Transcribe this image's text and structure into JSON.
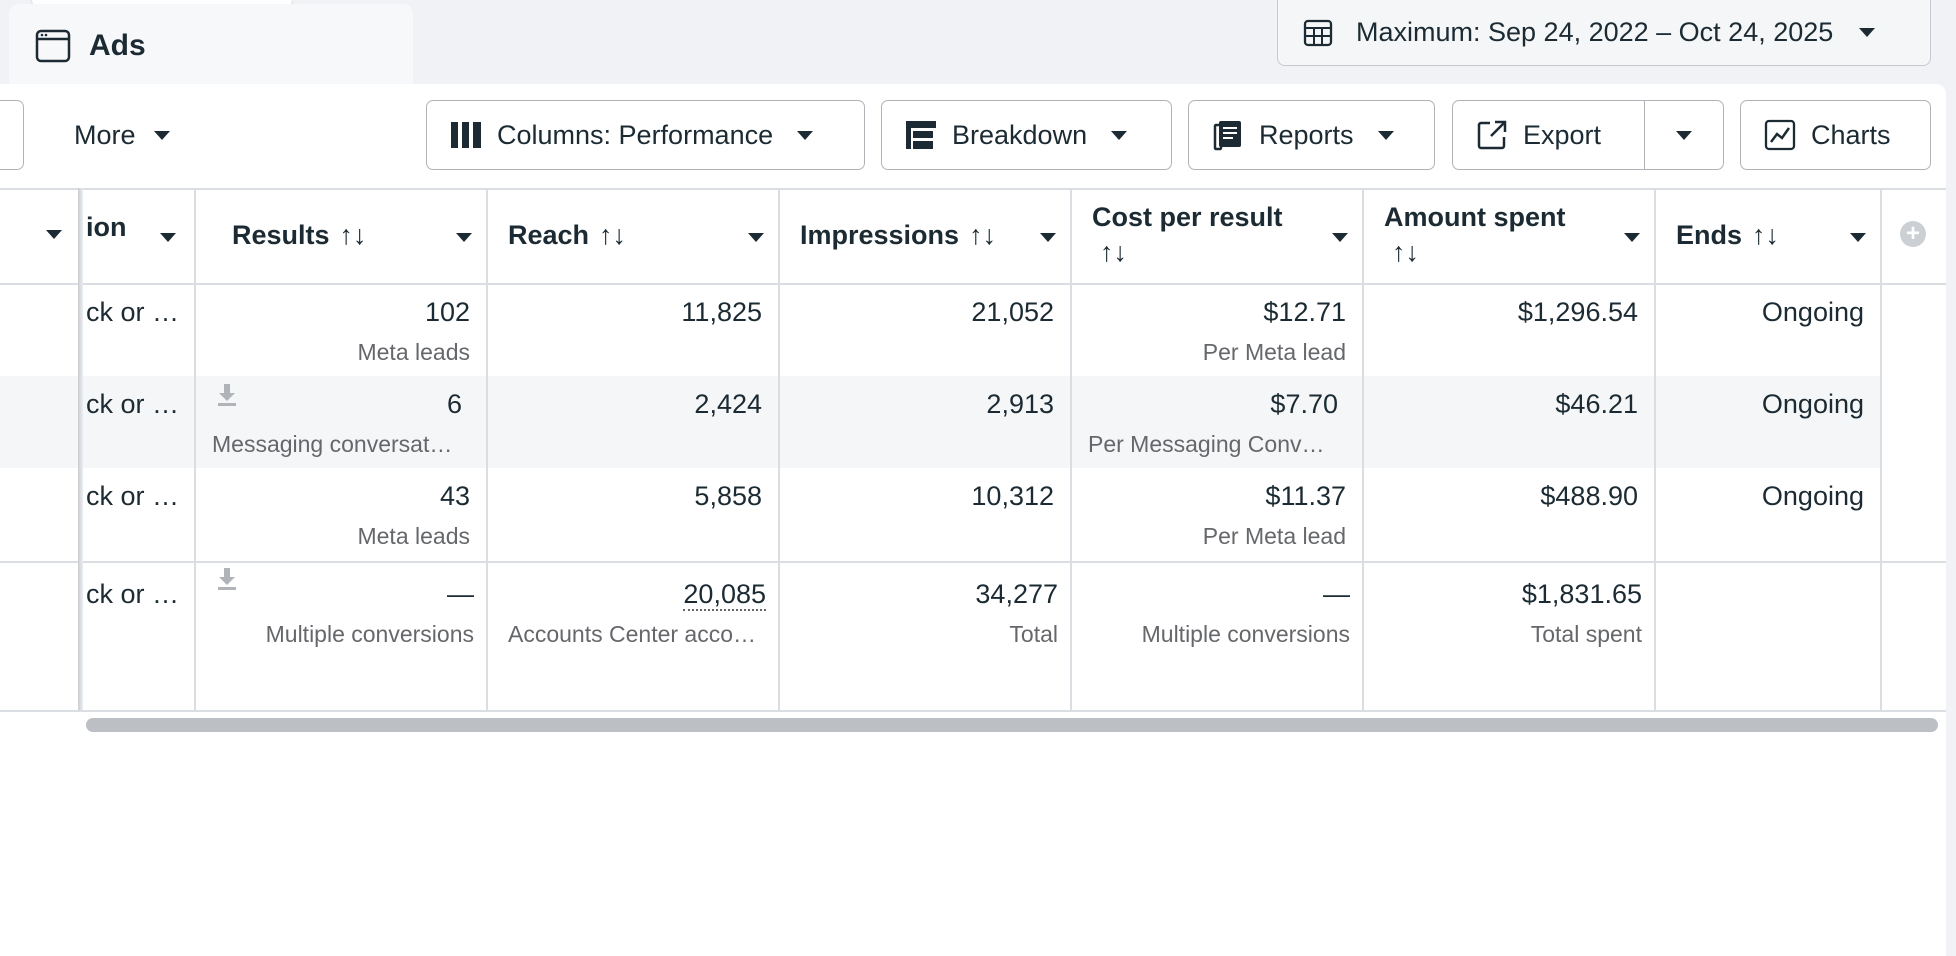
{
  "ads_tab": {
    "label": "Ads"
  },
  "date_range": {
    "label": "Maximum: Sep 24, 2022 – Oct 24, 2025"
  },
  "toolbar": {
    "more_label": "More",
    "columns_label": "Columns: Performance",
    "breakdown_label": "Breakdown",
    "reports_label": "Reports",
    "export_label": "Export",
    "charts_label": "Charts"
  },
  "table": {
    "headers": {
      "partial": "ion",
      "results": "Results",
      "reach": "Reach",
      "impressions": "Impressions",
      "cost_per_result": "Cost per result",
      "amount_spent": "Amount spent",
      "ends": "Ends",
      "sort_glyph": "↑↓"
    },
    "rows": [
      {
        "partial": "ck or …",
        "results": "102",
        "results_sub": "Meta leads",
        "reach": "11,825",
        "impressions": "21,052",
        "cost": "$12.71",
        "cost_sub": "Per Meta lead",
        "spent": "$1,296.54",
        "ends": "Ongoing"
      },
      {
        "partial": "ck or …",
        "results": "6",
        "results_sub": "Messaging conversat…",
        "reach": "2,424",
        "impressions": "2,913",
        "cost": "$7.70",
        "cost_sub": "Per Messaging Conv…",
        "spent": "$46.21",
        "ends": "Ongoing"
      },
      {
        "partial": "ck or …",
        "results": "43",
        "results_sub": "Meta leads",
        "reach": "5,858",
        "impressions": "10,312",
        "cost": "$11.37",
        "cost_sub": "Per Meta lead",
        "spent": "$488.90",
        "ends": "Ongoing"
      }
    ],
    "totals": {
      "partial": "ck or …",
      "results": "—",
      "results_sub": "Multiple conversions",
      "reach": "20,085",
      "reach_sub": "Accounts Center acco…",
      "impressions": "34,277",
      "impressions_sub": "Total",
      "cost": "—",
      "cost_sub": "Multiple conversions",
      "spent": "$1,831.65",
      "spent_sub": "Total spent"
    }
  },
  "icons": {
    "ads_tab": "browser-window-icon",
    "date": "calendar-table-icon",
    "columns": "columns-icon",
    "breakdown": "breakdown-icon",
    "reports": "reports-icon",
    "export": "export-icon",
    "charts": "chart-icon",
    "download": "download-icon",
    "add_column": "plus-circle-icon"
  }
}
